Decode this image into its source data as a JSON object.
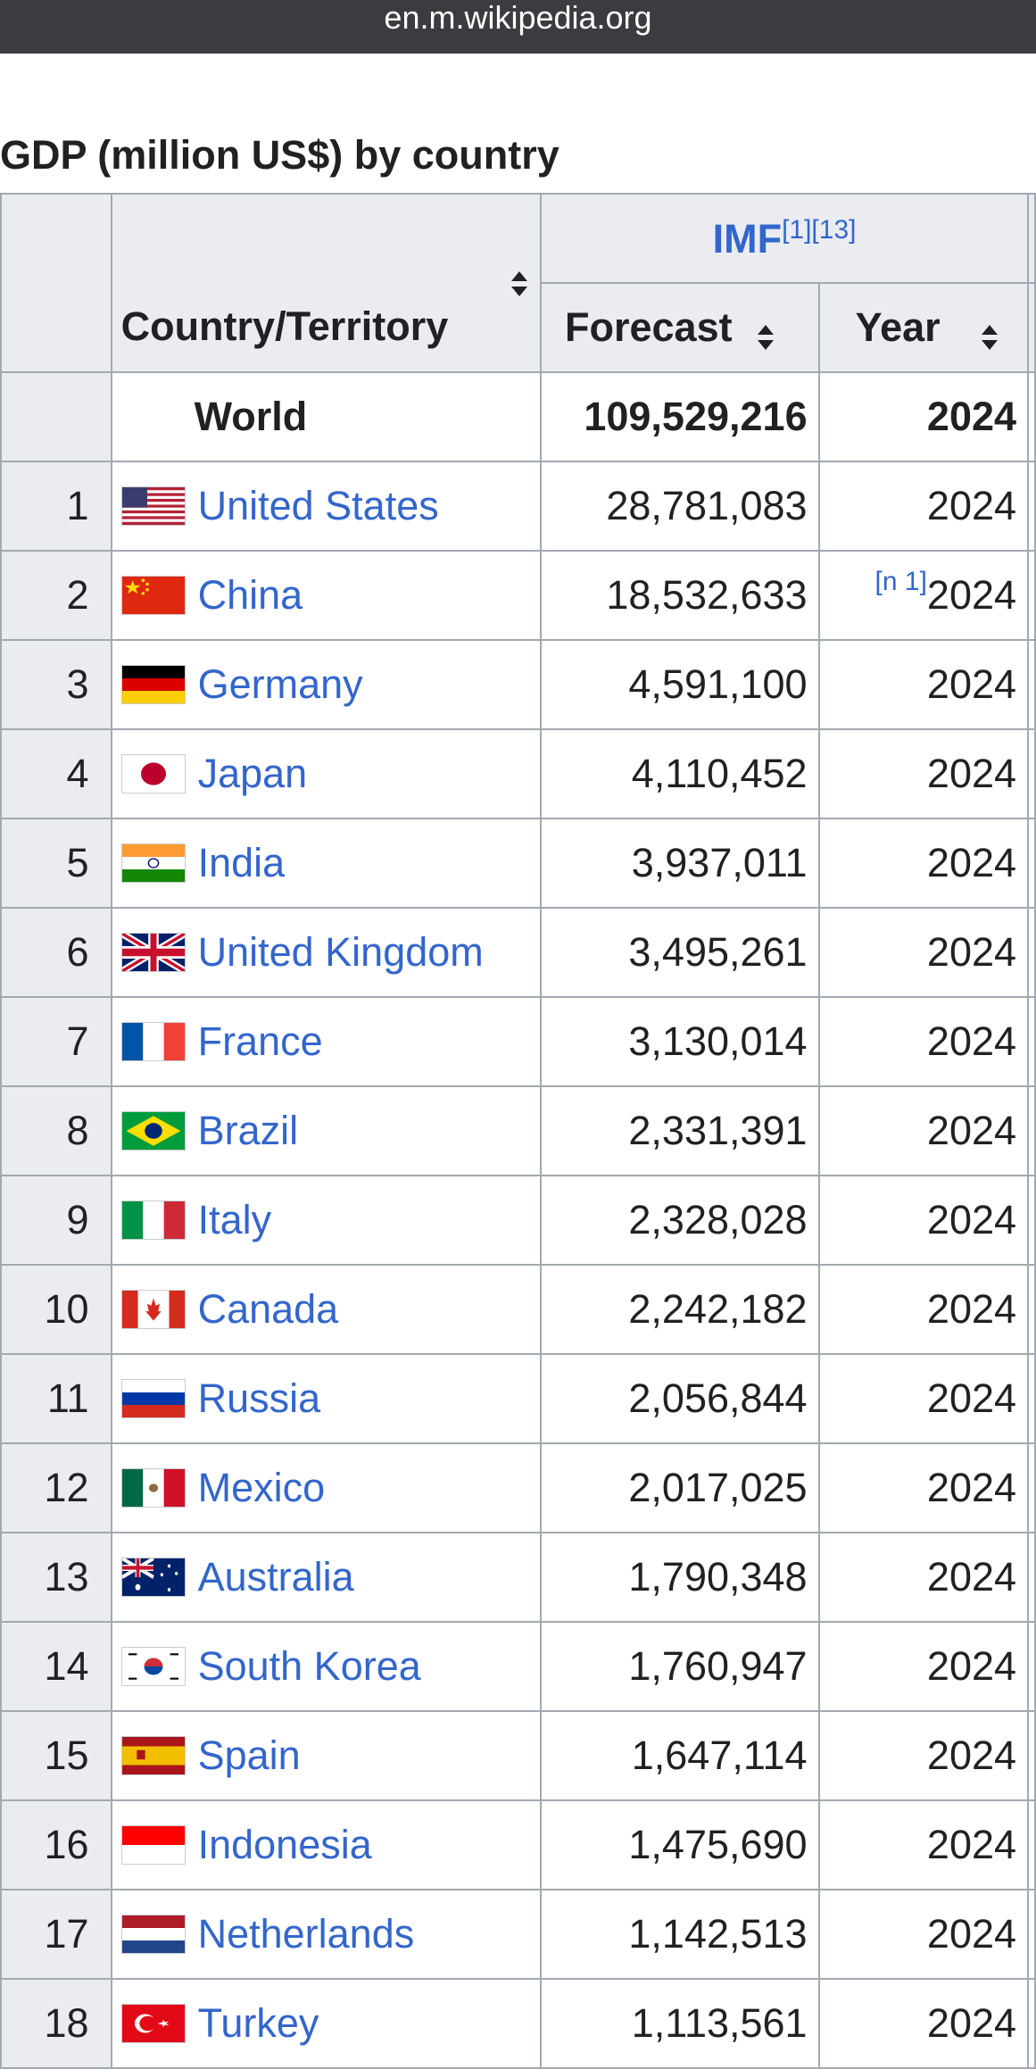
{
  "browser": {
    "url": "en.m.wikipedia.org"
  },
  "table": {
    "caption": "GDP (million US$) by country",
    "header": {
      "country_col": "Country/Territory",
      "source": "IMF",
      "source_refs": [
        "[1]",
        "[13]"
      ],
      "forecast_col": "Forecast",
      "year_col": "Year"
    },
    "world": {
      "label": "World",
      "forecast": "109,529,216",
      "year": "2024"
    },
    "rows": [
      {
        "rank": "1",
        "country": "United States",
        "flag": "us-flag",
        "forecast": "28,781,083",
        "year": "2024",
        "note": ""
      },
      {
        "rank": "2",
        "country": "China",
        "flag": "china-flag",
        "forecast": "18,532,633",
        "year": "2024",
        "note": "[n 1]"
      },
      {
        "rank": "3",
        "country": "Germany",
        "flag": "germany-flag",
        "forecast": "4,591,100",
        "year": "2024",
        "note": ""
      },
      {
        "rank": "4",
        "country": "Japan",
        "flag": "japan-flag",
        "forecast": "4,110,452",
        "year": "2024",
        "note": ""
      },
      {
        "rank": "5",
        "country": "India",
        "flag": "india-flag",
        "forecast": "3,937,011",
        "year": "2024",
        "note": ""
      },
      {
        "rank": "6",
        "country": "United Kingdom",
        "flag": "uk-flag",
        "forecast": "3,495,261",
        "year": "2024",
        "note": ""
      },
      {
        "rank": "7",
        "country": "France",
        "flag": "france-flag",
        "forecast": "3,130,014",
        "year": "2024",
        "note": ""
      },
      {
        "rank": "8",
        "country": "Brazil",
        "flag": "brazil-flag",
        "forecast": "2,331,391",
        "year": "2024",
        "note": ""
      },
      {
        "rank": "9",
        "country": "Italy",
        "flag": "italy-flag",
        "forecast": "2,328,028",
        "year": "2024",
        "note": ""
      },
      {
        "rank": "10",
        "country": "Canada",
        "flag": "canada-flag",
        "forecast": "2,242,182",
        "year": "2024",
        "note": ""
      },
      {
        "rank": "11",
        "country": "Russia",
        "flag": "russia-flag",
        "forecast": "2,056,844",
        "year": "2024",
        "note": ""
      },
      {
        "rank": "12",
        "country": "Mexico",
        "flag": "mexico-flag",
        "forecast": "2,017,025",
        "year": "2024",
        "note": ""
      },
      {
        "rank": "13",
        "country": "Australia",
        "flag": "australia-flag",
        "forecast": "1,790,348",
        "year": "2024",
        "note": ""
      },
      {
        "rank": "14",
        "country": "South Korea",
        "flag": "south-korea-flag",
        "forecast": "1,760,947",
        "year": "2024",
        "note": ""
      },
      {
        "rank": "15",
        "country": "Spain",
        "flag": "spain-flag",
        "forecast": "1,647,114",
        "year": "2024",
        "note": ""
      },
      {
        "rank": "16",
        "country": "Indonesia",
        "flag": "indonesia-flag",
        "forecast": "1,475,690",
        "year": "2024",
        "note": ""
      },
      {
        "rank": "17",
        "country": "Netherlands",
        "flag": "netherlands-flag",
        "forecast": "1,142,513",
        "year": "2024",
        "note": ""
      },
      {
        "rank": "18",
        "country": "Turkey",
        "flag": "turkey-flag",
        "forecast": "1,113,561",
        "year": "2024",
        "note": ""
      }
    ]
  },
  "colors": {
    "link": "#3366cc",
    "header_bg": "#eaecf0",
    "border": "#a2a9b1",
    "urlbar_bg": "#3a3c3f"
  }
}
